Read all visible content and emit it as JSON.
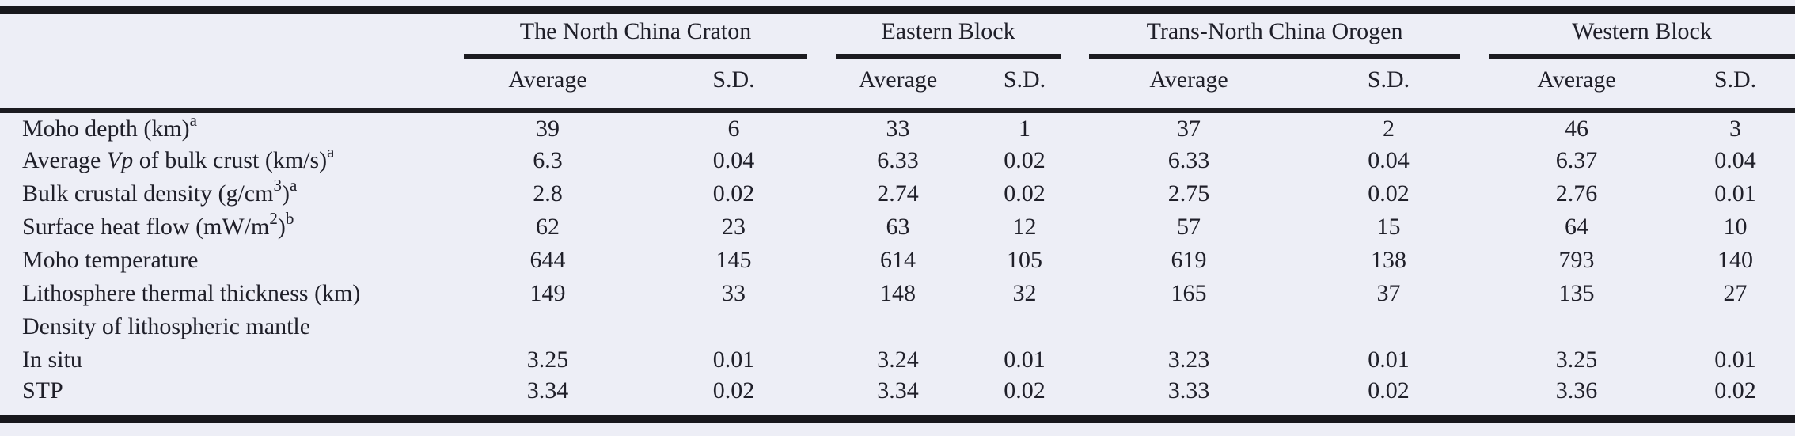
{
  "colors": {
    "background": "#edeef6",
    "text": "#1f1f29",
    "rule": "#17171c"
  },
  "table": {
    "groups": [
      {
        "label": "The North China Craton"
      },
      {
        "label": "Eastern Block"
      },
      {
        "label": "Trans-North China Orogen"
      },
      {
        "label": "Western Block"
      }
    ],
    "subheaders": {
      "average": "Average",
      "sd": "S.D."
    },
    "rows": [
      {
        "label_parts": [
          {
            "t": "Moho depth (km)"
          },
          {
            "t": "a",
            "f": "sup"
          }
        ],
        "values": [
          "39",
          "6",
          "33",
          "1",
          "37",
          "2",
          "46",
          "3"
        ]
      },
      {
        "label_parts": [
          {
            "t": "Average "
          },
          {
            "t": "Vp",
            "f": "i"
          },
          {
            "t": " of bulk crust (km/s)"
          },
          {
            "t": "a",
            "f": "sup"
          }
        ],
        "values": [
          "6.3",
          "0.04",
          "6.33",
          "0.02",
          "6.33",
          "0.04",
          "6.37",
          "0.04"
        ]
      },
      {
        "label_parts": [
          {
            "t": "Bulk crustal density (g/cm"
          },
          {
            "t": "3",
            "f": "sup"
          },
          {
            "t": ")"
          },
          {
            "t": "a",
            "f": "sup"
          }
        ],
        "values": [
          "2.8",
          "0.02",
          "2.74",
          "0.02",
          "2.75",
          "0.02",
          "2.76",
          "0.01"
        ]
      },
      {
        "label_parts": [
          {
            "t": "Surface heat flow (mW/m"
          },
          {
            "t": "2",
            "f": "sup"
          },
          {
            "t": ")"
          },
          {
            "t": "b",
            "f": "sup"
          }
        ],
        "values": [
          "62",
          "23",
          "63",
          "12",
          "57",
          "15",
          "64",
          "10"
        ]
      },
      {
        "label_parts": [
          {
            "t": "Moho temperature"
          }
        ],
        "values": [
          "644",
          "145",
          "614",
          "105",
          "619",
          "138",
          "793",
          "140"
        ]
      },
      {
        "label_parts": [
          {
            "t": "Lithosphere thermal thickness (km)"
          }
        ],
        "values": [
          "149",
          "33",
          "148",
          "32",
          "165",
          "37",
          "135",
          "27"
        ]
      },
      {
        "label_parts": [
          {
            "t": "Density of lithospheric mantle"
          }
        ],
        "values": [
          "",
          "",
          "",
          "",
          "",
          "",
          "",
          ""
        ]
      },
      {
        "label_parts": [
          {
            "t": "In situ"
          }
        ],
        "values": [
          "3.25",
          "0.01",
          "3.24",
          "0.01",
          "3.23",
          "0.01",
          "3.25",
          "0.01"
        ]
      },
      {
        "label_parts": [
          {
            "t": "STP"
          }
        ],
        "values": [
          "3.34",
          "0.02",
          "3.34",
          "0.02",
          "3.33",
          "0.02",
          "3.36",
          "0.02"
        ]
      }
    ]
  }
}
